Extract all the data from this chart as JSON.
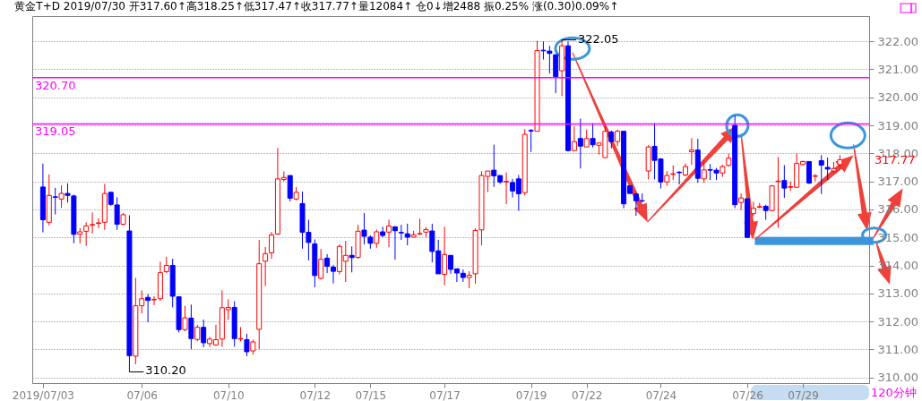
{
  "chart_data": {
    "type": "candlestick",
    "title": "黄金T+D 2019/07/30 开317.60↑高318.25↑低317.47↑收317.77↑量12084↑ 仓0↓增2488 振0.25% 涨(0.30)0.09%↑",
    "categories": [
      "2019/07/03",
      null,
      null,
      null,
      null,
      null,
      null,
      null,
      null,
      null,
      null,
      null,
      null,
      null,
      null,
      null,
      "07/06",
      null,
      null,
      null,
      null,
      null,
      null,
      null,
      null,
      null,
      null,
      null,
      null,
      null,
      "07/10",
      null,
      null,
      null,
      null,
      null,
      null,
      null,
      null,
      null,
      null,
      null,
      null,
      null,
      "07/12",
      null,
      null,
      null,
      null,
      null,
      null,
      null,
      null,
      "07/15",
      null,
      null,
      null,
      null,
      null,
      null,
      null,
      null,
      null,
      null,
      null,
      "07/17",
      null,
      null,
      null,
      null,
      null,
      null,
      null,
      null,
      null,
      null,
      null,
      null,
      null,
      "07/19",
      null,
      null,
      null,
      null,
      null,
      null,
      null,
      null,
      "07/22",
      null,
      null,
      null,
      null,
      null,
      null,
      null,
      null,
      null,
      null,
      null,
      "07/24",
      null,
      null,
      null,
      null,
      null,
      null,
      null,
      null,
      null,
      null,
      null,
      null,
      null,
      "07/26",
      null,
      null,
      null,
      null,
      null,
      null,
      null,
      null,
      "07/29",
      null,
      null,
      null,
      null,
      null,
      null
    ],
    "ohlc": [
      [
        316.8,
        317.64,
        315.18,
        315.63
      ],
      [
        315.54,
        317.25,
        315.43,
        316.5
      ],
      [
        316.45,
        316.77,
        315.82,
        316.43
      ],
      [
        316.37,
        316.86,
        316.05,
        316.57
      ],
      [
        316.57,
        316.93,
        316.25,
        316.5
      ],
      [
        316.48,
        316.53,
        314.79,
        315.11
      ],
      [
        315.12,
        315.33,
        314.79,
        315.2
      ],
      [
        315.22,
        315.54,
        314.7,
        315.41
      ],
      [
        315.44,
        315.89,
        315.14,
        315.46
      ],
      [
        315.5,
        315.68,
        315.33,
        315.52
      ],
      [
        315.54,
        316.91,
        315.27,
        316.57
      ],
      [
        316.61,
        316.63,
        316.13,
        316.18
      ],
      [
        316.16,
        316.43,
        315.27,
        315.47
      ],
      [
        315.47,
        315.87,
        315.43,
        315.81
      ],
      [
        315.23,
        315.79,
        310.2,
        310.78
      ],
      [
        310.76,
        313.56,
        310.47,
        312.56
      ],
      [
        312.56,
        313.11,
        312.29,
        312.81
      ],
      [
        312.86,
        312.98,
        311.97,
        312.75
      ],
      [
        312.77,
        312.9,
        312.58,
        312.79
      ],
      [
        312.81,
        314.13,
        312.74,
        313.74
      ],
      [
        313.78,
        314.31,
        313.73,
        314.0
      ],
      [
        314.0,
        314.24,
        312.5,
        312.9
      ],
      [
        312.88,
        312.88,
        311.61,
        311.71
      ],
      [
        311.71,
        312.56,
        311.65,
        312.13
      ],
      [
        312.12,
        312.6,
        311.01,
        311.39
      ],
      [
        311.36,
        311.88,
        311.29,
        311.79
      ],
      [
        311.79,
        312.07,
        311.08,
        311.24
      ],
      [
        311.21,
        311.45,
        311.1,
        311.37
      ],
      [
        311.16,
        311.88,
        311.13,
        311.35
      ],
      [
        311.37,
        313.11,
        311.1,
        312.49
      ],
      [
        312.42,
        312.79,
        312.06,
        312.5
      ],
      [
        312.5,
        312.72,
        311.1,
        311.39
      ],
      [
        311.37,
        311.8,
        311.29,
        311.39
      ],
      [
        311.35,
        311.56,
        310.76,
        310.92
      ],
      [
        310.95,
        311.35,
        310.81,
        311.27
      ],
      [
        311.72,
        314.91,
        311.01,
        314.06
      ],
      [
        314.15,
        314.66,
        313.27,
        314.42
      ],
      [
        314.45,
        315.2,
        314.24,
        315.09
      ],
      [
        315.12,
        318.19,
        315.09,
        317.09
      ],
      [
        317.07,
        317.36,
        317.0,
        317.14
      ],
      [
        317.21,
        317.21,
        316.29,
        316.4
      ],
      [
        316.37,
        316.8,
        316.32,
        316.61
      ],
      [
        316.21,
        316.64,
        314.6,
        315.18
      ],
      [
        315.18,
        315.63,
        314.18,
        314.82
      ],
      [
        314.77,
        314.93,
        313.22,
        313.64
      ],
      [
        313.54,
        314.59,
        313.49,
        314.22
      ],
      [
        314.26,
        314.4,
        313.73,
        313.97
      ],
      [
        313.94,
        314.02,
        313.36,
        313.79
      ],
      [
        313.78,
        314.75,
        313.68,
        314.68
      ],
      [
        314.15,
        314.88,
        313.41,
        314.36
      ],
      [
        314.36,
        314.68,
        313.75,
        314.28
      ],
      [
        314.29,
        315.45,
        314.24,
        315.22
      ],
      [
        315.26,
        315.87,
        314.75,
        315.04
      ],
      [
        315.01,
        315.07,
        314.6,
        314.79
      ],
      [
        314.79,
        315.28,
        314.63,
        315.2
      ],
      [
        315.2,
        315.38,
        315.01,
        315.07
      ],
      [
        315.19,
        315.63,
        314.65,
        315.41
      ],
      [
        315.38,
        315.38,
        314.21,
        315.24
      ],
      [
        315.18,
        315.45,
        314.91,
        315.16
      ],
      [
        315.13,
        315.49,
        314.72,
        315.01
      ],
      [
        315.01,
        315.24,
        315.0,
        315.09
      ],
      [
        315.12,
        315.67,
        315.09,
        315.14
      ],
      [
        315.19,
        315.37,
        315.01,
        315.28
      ],
      [
        315.23,
        315.49,
        314.11,
        314.5
      ],
      [
        314.52,
        314.92,
        313.7,
        313.7
      ],
      [
        313.68,
        315.38,
        313.3,
        314.39
      ],
      [
        314.36,
        314.36,
        313.7,
        313.86
      ],
      [
        313.88,
        313.88,
        313.41,
        313.73
      ],
      [
        313.72,
        313.86,
        313.41,
        313.57
      ],
      [
        313.57,
        313.79,
        313.19,
        313.65
      ],
      [
        313.7,
        315.33,
        313.35,
        315.25
      ],
      [
        315.27,
        317.36,
        314.72,
        317.21
      ],
      [
        317.18,
        317.37,
        316.62,
        317.37
      ],
      [
        317.4,
        318.31,
        316.8,
        317.2
      ],
      [
        317.21,
        317.21,
        316.91,
        316.98
      ],
      [
        316.98,
        317.32,
        316.19,
        317.0
      ],
      [
        316.96,
        317.09,
        316.43,
        316.66
      ],
      [
        317.09,
        317.23,
        315.95,
        316.56
      ],
      [
        316.6,
        318.87,
        316.5,
        318.68
      ],
      [
        318.82,
        318.87,
        318.05,
        318.8
      ],
      [
        318.79,
        322.02,
        318.79,
        321.67
      ],
      [
        321.68,
        322.0,
        321.35,
        321.66
      ],
      [
        321.65,
        321.84,
        320.85,
        321.57
      ],
      [
        321.52,
        321.54,
        320.15,
        320.74
      ],
      [
        320.95,
        322.05,
        320.04,
        321.84
      ],
      [
        321.84,
        322.0,
        318.07,
        318.1
      ],
      [
        318.1,
        318.96,
        318.07,
        318.42
      ],
      [
        318.53,
        319.24,
        317.46,
        318.26
      ],
      [
        318.23,
        318.85,
        318.23,
        318.53
      ],
      [
        318.53,
        319.08,
        318.21,
        318.31
      ],
      [
        318.29,
        318.37,
        317.96,
        318.37
      ],
      [
        317.85,
        318.96,
        317.85,
        318.79
      ],
      [
        318.76,
        318.82,
        318.18,
        318.42
      ],
      [
        318.42,
        318.85,
        318.26,
        318.79
      ],
      [
        318.79,
        318.79,
        316.04,
        316.2
      ],
      [
        316.84,
        316.84,
        316.55,
        316.57
      ],
      [
        316.55,
        316.57,
        315.77,
        316.31
      ],
      [
        316.31,
        316.57,
        316.25,
        316.3
      ],
      [
        317.37,
        318.3,
        317.07,
        318.23
      ],
      [
        318.25,
        319.08,
        317.07,
        317.75
      ],
      [
        317.8,
        317.83,
        316.75,
        316.98
      ],
      [
        316.98,
        317.37,
        316.84,
        317.21
      ],
      [
        317.25,
        317.57,
        317.05,
        317.27
      ],
      [
        317.33,
        317.37,
        316.89,
        317.31
      ],
      [
        317.23,
        317.64,
        317.18,
        317.53
      ],
      [
        318.06,
        318.55,
        317.59,
        318.12
      ],
      [
        318.12,
        318.52,
        316.95,
        317.11
      ],
      [
        317.09,
        317.75,
        316.95,
        317.41
      ],
      [
        317.42,
        317.62,
        317.05,
        317.4
      ],
      [
        317.4,
        317.48,
        317.05,
        317.3
      ],
      [
        317.3,
        317.59,
        317.16,
        317.53
      ],
      [
        317.57,
        317.99,
        317.53,
        317.83
      ],
      [
        319.0,
        319.35,
        316.04,
        316.17
      ],
      [
        316.25,
        316.57,
        315.98,
        316.41
      ],
      [
        316.38,
        316.38,
        314.98,
        315.0
      ],
      [
        315.85,
        316.27,
        315.77,
        316.04
      ],
      [
        316.08,
        316.23,
        316.04,
        316.1
      ],
      [
        316.11,
        316.17,
        315.63,
        315.96
      ],
      [
        315.96,
        316.87,
        315.93,
        316.84
      ],
      [
        316.99,
        317.87,
        315.35,
        317.01
      ],
      [
        317.03,
        317.58,
        316.41,
        316.76
      ],
      [
        316.79,
        317.0,
        316.66,
        316.81
      ],
      [
        316.79,
        317.99,
        316.79,
        317.64
      ],
      [
        317.6,
        317.74,
        317.58,
        317.71
      ],
      [
        317.71,
        317.71,
        316.91,
        316.94
      ],
      [
        317.18,
        317.26,
        317.0,
        317.2
      ],
      [
        317.74,
        317.94,
        316.55,
        317.58
      ],
      [
        317.5,
        317.85,
        317.05,
        317.44
      ],
      [
        317.37,
        317.69,
        317.3,
        317.46
      ],
      [
        317.6,
        317.94,
        317.48,
        317.77
      ]
    ],
    "colors": [
      "#0000ff",
      "#ff0000",
      "#0000ff",
      "#ff0000",
      "#0000ff",
      "#0000ff",
      "#ff0000",
      "#ff0000",
      "#ff0000",
      "#ff0000",
      "#ff0000",
      "#0000ff",
      "#0000ff",
      "#ff0000",
      "#0000ff",
      "#ff0000",
      "#ff0000",
      "#0000ff",
      "#ff0000",
      "#ff0000",
      "#ff0000",
      "#0000ff",
      "#0000ff",
      "#ff0000",
      "#0000ff",
      "#ff0000",
      "#0000ff",
      "#ff0000",
      "#ff0000",
      "#ff0000",
      "#ff0000",
      "#0000ff",
      "#ff0000",
      "#0000ff",
      "#ff0000",
      "#ff0000",
      "#ff0000",
      "#ff0000",
      "#ff0000",
      "#ff0000",
      "#0000ff",
      "#ff0000",
      "#0000ff",
      "#0000ff",
      "#0000ff",
      "#ff0000",
      "#0000ff",
      "#0000ff",
      "#ff0000",
      "#ff0000",
      "#0000ff",
      "#ff0000",
      "#0000ff",
      "#0000ff",
      "#ff0000",
      "#0000ff",
      "#ff0000",
      "#0000ff",
      "#0000ff",
      "#0000ff",
      "#ff0000",
      "#ff0000",
      "#ff0000",
      "#0000ff",
      "#0000ff",
      "#ff0000",
      "#0000ff",
      "#0000ff",
      "#0000ff",
      "#ff0000",
      "#ff0000",
      "#ff0000",
      "#ff0000",
      "#0000ff",
      "#0000ff",
      "#ff0000",
      "#0000ff",
      "#0000ff",
      "#ff0000",
      "#0000ff",
      "#ff0000",
      "#0000ff",
      "#0000ff",
      "#0000ff",
      "#ff0000",
      "#0000ff",
      "#ff0000",
      "#0000ff",
      "#ff0000",
      "#0000ff",
      "#ff0000",
      "#ff0000",
      "#0000ff",
      "#ff0000",
      "#0000ff",
      "#0000ff",
      "#0000ff",
      "#0000ff",
      "#ff0000",
      "#0000ff",
      "#0000ff",
      "#ff0000",
      "#ff0000",
      "#0000ff",
      "#ff0000",
      "#ff0000",
      "#0000ff",
      "#ff0000",
      "#0000ff",
      "#0000ff",
      "#ff0000",
      "#ff0000",
      "#0000ff",
      "#ff0000",
      "#0000ff",
      "#ff0000",
      "#ff0000",
      "#0000ff",
      "#ff0000",
      "#ff0000",
      "#0000ff",
      "#ff0000",
      "#ff0000",
      "#ff0000",
      "#0000ff",
      "#ff0000",
      "#0000ff",
      "#0000ff",
      "#ff0000",
      "#ff0000"
    ],
    "ylim": [
      309.8,
      322.9
    ],
    "yticks": [
      {
        "value": 310,
        "label": "310.00"
      },
      {
        "value": 311,
        "label": "311.00"
      },
      {
        "value": 312,
        "label": "312.00"
      },
      {
        "value": 313,
        "label": "313.00"
      },
      {
        "value": 314,
        "label": "314.00"
      },
      {
        "value": 315,
        "label": "315.00"
      },
      {
        "value": 316,
        "label": "316.00"
      },
      {
        "value": 317,
        "label": "317.00"
      },
      {
        "value": 318,
        "label": "318.00"
      },
      {
        "value": 319,
        "label": "319.00"
      },
      {
        "value": 320,
        "label": "320.00"
      },
      {
        "value": 321,
        "label": "321.00"
      },
      {
        "value": 322,
        "label": "322.00"
      }
    ],
    "grid": "y",
    "ref_lines": [
      {
        "axis": "y",
        "value": 320.7,
        "label": "320.70",
        "color": "#ff00ff"
      },
      {
        "axis": "y",
        "value": 319.05,
        "label": "319.05",
        "color": "#ff00ff"
      }
    ],
    "annotations": [
      "120分钟",
      "322.05",
      "310.20",
      "317.77"
    ]
  }
}
